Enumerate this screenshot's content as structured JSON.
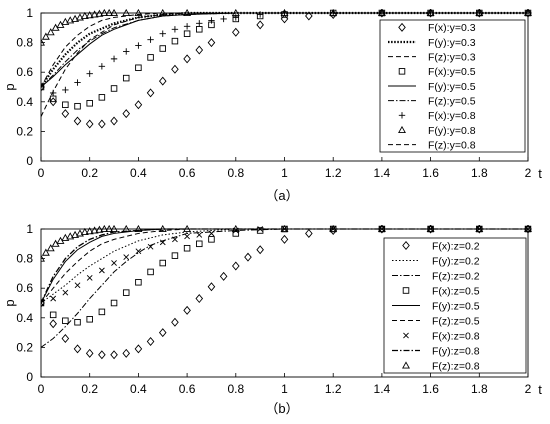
{
  "chart_data": [
    {
      "type": "line",
      "subtitle": "（a）",
      "xlabel": "t",
      "ylabel": "p",
      "xlim": [
        0,
        2
      ],
      "ylim": [
        0,
        1
      ],
      "xticks": [
        "0",
        "0.2",
        "0.4",
        "0.6",
        "0.8",
        "1",
        "1.2",
        "1.4",
        "1.6",
        "1.8",
        "2"
      ],
      "yticks": [
        "0",
        "0.2",
        "0.4",
        "0.6",
        "0.8",
        "1"
      ],
      "legend_position": "top-right",
      "series": [
        {
          "name": "F(x):y=0.3",
          "marker": "diamond",
          "line": "none",
          "x": [
            0,
            0.05,
            0.1,
            0.15,
            0.2,
            0.25,
            0.3,
            0.35,
            0.4,
            0.45,
            0.5,
            0.55,
            0.6,
            0.65,
            0.7,
            0.8,
            0.9,
            1.0,
            1.1,
            1.2,
            1.4,
            1.6,
            1.8,
            2.0
          ],
          "y": [
            0.5,
            0.4,
            0.32,
            0.27,
            0.25,
            0.25,
            0.27,
            0.32,
            0.38,
            0.46,
            0.54,
            0.62,
            0.69,
            0.75,
            0.8,
            0.87,
            0.92,
            0.96,
            0.98,
            0.99,
            1.0,
            1.0,
            1.0,
            1.0
          ]
        },
        {
          "name": "F(y):y=0.3",
          "marker": "none",
          "line": "dotted-thick",
          "x": [
            0,
            0.05,
            0.1,
            0.15,
            0.2,
            0.3,
            0.4,
            0.5,
            0.6,
            0.8,
            1.0,
            1.5,
            2.0
          ],
          "y": [
            0.5,
            0.62,
            0.72,
            0.8,
            0.86,
            0.93,
            0.97,
            0.99,
            1.0,
            1.0,
            1.0,
            1.0,
            1.0
          ]
        },
        {
          "name": "F(z):y=0.3",
          "marker": "none",
          "line": "dashed",
          "x": [
            0,
            0.05,
            0.1,
            0.15,
            0.2,
            0.3,
            0.4,
            0.5,
            0.6,
            0.8,
            1.0,
            1.5,
            2.0
          ],
          "y": [
            0.3,
            0.47,
            0.62,
            0.73,
            0.82,
            0.92,
            0.97,
            0.99,
            1.0,
            1.0,
            1.0,
            1.0,
            1.0
          ]
        },
        {
          "name": "F(x):y=0.5",
          "marker": "square",
          "line": "none",
          "x": [
            0,
            0.05,
            0.1,
            0.15,
            0.2,
            0.25,
            0.3,
            0.35,
            0.4,
            0.45,
            0.5,
            0.55,
            0.6,
            0.65,
            0.7,
            0.8,
            0.9,
            1.0,
            1.2,
            1.4,
            1.6,
            1.8,
            2.0
          ],
          "y": [
            0.5,
            0.42,
            0.38,
            0.37,
            0.39,
            0.43,
            0.49,
            0.56,
            0.63,
            0.7,
            0.76,
            0.81,
            0.86,
            0.89,
            0.92,
            0.96,
            0.98,
            0.99,
            1.0,
            1.0,
            1.0,
            1.0,
            1.0
          ]
        },
        {
          "name": "F(y):y=0.5",
          "marker": "none",
          "line": "solid",
          "x": [
            0,
            0.05,
            0.1,
            0.15,
            0.2,
            0.25,
            0.3,
            0.4,
            0.5,
            0.6,
            0.8,
            1.0,
            1.5,
            2.0
          ],
          "y": [
            0.5,
            0.57,
            0.65,
            0.72,
            0.79,
            0.85,
            0.89,
            0.95,
            0.98,
            0.99,
            1.0,
            1.0,
            1.0,
            1.0
          ]
        },
        {
          "name": "F(z):y=0.5",
          "marker": "none",
          "line": "dashdot",
          "x": [
            0,
            0.05,
            0.1,
            0.15,
            0.2,
            0.25,
            0.3,
            0.4,
            0.5,
            0.6,
            0.8,
            1.0,
            1.5,
            2.0
          ],
          "y": [
            0.5,
            0.58,
            0.67,
            0.75,
            0.81,
            0.86,
            0.9,
            0.95,
            0.98,
            0.99,
            1.0,
            1.0,
            1.0,
            1.0
          ]
        },
        {
          "name": "F(x):y=0.8",
          "marker": "plus",
          "line": "none",
          "x": [
            0,
            0.05,
            0.1,
            0.15,
            0.2,
            0.25,
            0.3,
            0.35,
            0.4,
            0.45,
            0.5,
            0.55,
            0.6,
            0.65,
            0.7,
            0.75,
            0.8,
            0.9,
            1.0,
            1.2,
            1.4,
            1.6,
            1.8,
            2.0
          ],
          "y": [
            0.5,
            0.46,
            0.48,
            0.53,
            0.59,
            0.64,
            0.69,
            0.74,
            0.78,
            0.82,
            0.86,
            0.89,
            0.91,
            0.93,
            0.95,
            0.96,
            0.97,
            0.99,
            1.0,
            1.0,
            1.0,
            1.0,
            1.0,
            1.0
          ]
        },
        {
          "name": "F(y):y=0.8",
          "marker": "triangle",
          "line": "none",
          "x": [
            0,
            0.02,
            0.04,
            0.06,
            0.08,
            0.1,
            0.12,
            0.14,
            0.16,
            0.18,
            0.2,
            0.22,
            0.24,
            0.26,
            0.28,
            0.3,
            0.35,
            0.4,
            0.5,
            0.6,
            0.8,
            1.0,
            1.2,
            1.4,
            1.6,
            1.8,
            2.0
          ],
          "y": [
            0.8,
            0.84,
            0.87,
            0.9,
            0.92,
            0.94,
            0.95,
            0.96,
            0.97,
            0.98,
            0.985,
            0.99,
            0.995,
            1.0,
            1.0,
            1.0,
            1.0,
            1.0,
            1.0,
            1.0,
            1.0,
            1.0,
            1.0,
            1.0,
            1.0,
            1.0,
            1.0
          ]
        },
        {
          "name": "F(z):y=0.8",
          "marker": "none",
          "line": "dashed",
          "x": [
            0,
            0.05,
            0.1,
            0.15,
            0.2,
            0.25,
            0.3,
            0.4,
            0.5,
            0.6,
            0.8,
            1.0,
            1.5,
            2.0
          ],
          "y": [
            0.5,
            0.65,
            0.77,
            0.85,
            0.91,
            0.95,
            0.97,
            0.99,
            1.0,
            1.0,
            1.0,
            1.0,
            1.0,
            1.0
          ]
        }
      ]
    },
    {
      "type": "line",
      "subtitle": "（b）",
      "xlabel": "t",
      "ylabel": "p",
      "xlim": [
        0,
        2
      ],
      "ylim": [
        0,
        1
      ],
      "xticks": [
        "0",
        "0.2",
        "0.4",
        "0.6",
        "0.8",
        "1",
        "1.2",
        "1.4",
        "1.6",
        "1.8",
        "2"
      ],
      "yticks": [
        "0",
        "0.2",
        "0.4",
        "0.6",
        "0.8",
        "1"
      ],
      "legend_position": "top-right",
      "series": [
        {
          "name": "F(x):z=0.2",
          "marker": "diamond",
          "line": "none",
          "x": [
            0,
            0.05,
            0.1,
            0.15,
            0.2,
            0.25,
            0.3,
            0.35,
            0.4,
            0.45,
            0.5,
            0.55,
            0.6,
            0.65,
            0.7,
            0.75,
            0.8,
            0.85,
            0.9,
            1.0,
            1.1,
            1.2,
            1.4,
            1.6,
            1.8,
            2.0
          ],
          "y": [
            0.5,
            0.36,
            0.26,
            0.19,
            0.16,
            0.15,
            0.15,
            0.16,
            0.19,
            0.24,
            0.3,
            0.37,
            0.45,
            0.53,
            0.61,
            0.68,
            0.75,
            0.81,
            0.86,
            0.93,
            0.97,
            0.99,
            1.0,
            1.0,
            1.0,
            1.0
          ]
        },
        {
          "name": "F(y):z=0.2",
          "marker": "none",
          "line": "dotted",
          "x": [
            0,
            0.05,
            0.1,
            0.15,
            0.2,
            0.25,
            0.3,
            0.4,
            0.5,
            0.6,
            0.8,
            1.0,
            1.5,
            2.0
          ],
          "y": [
            0.5,
            0.56,
            0.62,
            0.69,
            0.75,
            0.8,
            0.85,
            0.92,
            0.96,
            0.98,
            1.0,
            1.0,
            1.0,
            1.0
          ]
        },
        {
          "name": "F(z):z=0.2",
          "marker": "none",
          "line": "dashdot",
          "x": [
            0,
            0.05,
            0.1,
            0.15,
            0.2,
            0.25,
            0.3,
            0.35,
            0.4,
            0.45,
            0.5,
            0.6,
            0.8,
            1.0,
            1.5,
            2.0
          ],
          "y": [
            0.2,
            0.26,
            0.34,
            0.43,
            0.53,
            0.62,
            0.71,
            0.78,
            0.84,
            0.89,
            0.92,
            0.97,
            0.99,
            1.0,
            1.0,
            1.0
          ]
        },
        {
          "name": "F(x):z=0.5",
          "marker": "square",
          "line": "none",
          "x": [
            0,
            0.05,
            0.1,
            0.15,
            0.2,
            0.25,
            0.3,
            0.35,
            0.4,
            0.45,
            0.5,
            0.55,
            0.6,
            0.65,
            0.7,
            0.8,
            0.9,
            1.0,
            1.2,
            1.4,
            1.6,
            1.8,
            2.0
          ],
          "y": [
            0.5,
            0.42,
            0.38,
            0.37,
            0.39,
            0.44,
            0.5,
            0.57,
            0.64,
            0.71,
            0.77,
            0.82,
            0.87,
            0.9,
            0.93,
            0.97,
            0.99,
            1.0,
            1.0,
            1.0,
            1.0,
            1.0,
            1.0
          ]
        },
        {
          "name": "F(y):z=0.5",
          "marker": "none",
          "line": "solid",
          "x": [
            0,
            0.05,
            0.1,
            0.15,
            0.2,
            0.25,
            0.3,
            0.4,
            0.5,
            0.6,
            0.8,
            1.0,
            1.5,
            2.0
          ],
          "y": [
            0.5,
            0.66,
            0.78,
            0.86,
            0.91,
            0.95,
            0.97,
            0.99,
            1.0,
            1.0,
            1.0,
            1.0,
            1.0,
            1.0
          ]
        },
        {
          "name": "F(z):z=0.5",
          "marker": "none",
          "line": "dashed",
          "x": [
            0,
            0.05,
            0.1,
            0.15,
            0.2,
            0.25,
            0.3,
            0.4,
            0.5,
            0.6,
            0.8,
            1.0,
            1.5,
            2.0
          ],
          "y": [
            0.5,
            0.6,
            0.7,
            0.78,
            0.85,
            0.9,
            0.93,
            0.97,
            0.99,
            1.0,
            1.0,
            1.0,
            1.0,
            1.0
          ]
        },
        {
          "name": "F(x):z=0.8",
          "marker": "cross",
          "line": "none",
          "x": [
            0,
            0.05,
            0.1,
            0.15,
            0.2,
            0.25,
            0.3,
            0.35,
            0.4,
            0.45,
            0.5,
            0.55,
            0.6,
            0.65,
            0.7,
            0.8,
            0.9,
            1.0,
            1.2,
            1.4,
            1.6,
            1.8,
            2.0
          ],
          "y": [
            0.5,
            0.53,
            0.57,
            0.62,
            0.67,
            0.72,
            0.77,
            0.81,
            0.85,
            0.88,
            0.91,
            0.93,
            0.95,
            0.96,
            0.97,
            0.99,
            1.0,
            1.0,
            1.0,
            1.0,
            1.0,
            1.0,
            1.0
          ]
        },
        {
          "name": "F(y):z=0.8",
          "marker": "none",
          "line": "dashdot-thick",
          "x": [
            0,
            0.05,
            0.1,
            0.15,
            0.2,
            0.25,
            0.3,
            0.4,
            0.5,
            0.6,
            0.8,
            1.0,
            1.5,
            2.0
          ],
          "y": [
            0.5,
            0.68,
            0.8,
            0.88,
            0.93,
            0.96,
            0.98,
            0.99,
            1.0,
            1.0,
            1.0,
            1.0,
            1.0,
            1.0
          ]
        },
        {
          "name": "F(z):z=0.8",
          "marker": "triangle",
          "line": "none",
          "x": [
            0,
            0.02,
            0.04,
            0.06,
            0.08,
            0.1,
            0.12,
            0.14,
            0.16,
            0.18,
            0.2,
            0.22,
            0.24,
            0.26,
            0.28,
            0.3,
            0.35,
            0.4,
            0.5,
            0.6,
            0.8,
            1.0,
            1.2,
            1.4,
            1.6,
            1.8,
            2.0
          ],
          "y": [
            0.8,
            0.84,
            0.87,
            0.9,
            0.92,
            0.94,
            0.95,
            0.96,
            0.97,
            0.98,
            0.985,
            0.99,
            0.995,
            1.0,
            1.0,
            1.0,
            1.0,
            1.0,
            1.0,
            1.0,
            1.0,
            1.0,
            1.0,
            1.0,
            1.0,
            1.0,
            1.0
          ]
        }
      ]
    }
  ]
}
